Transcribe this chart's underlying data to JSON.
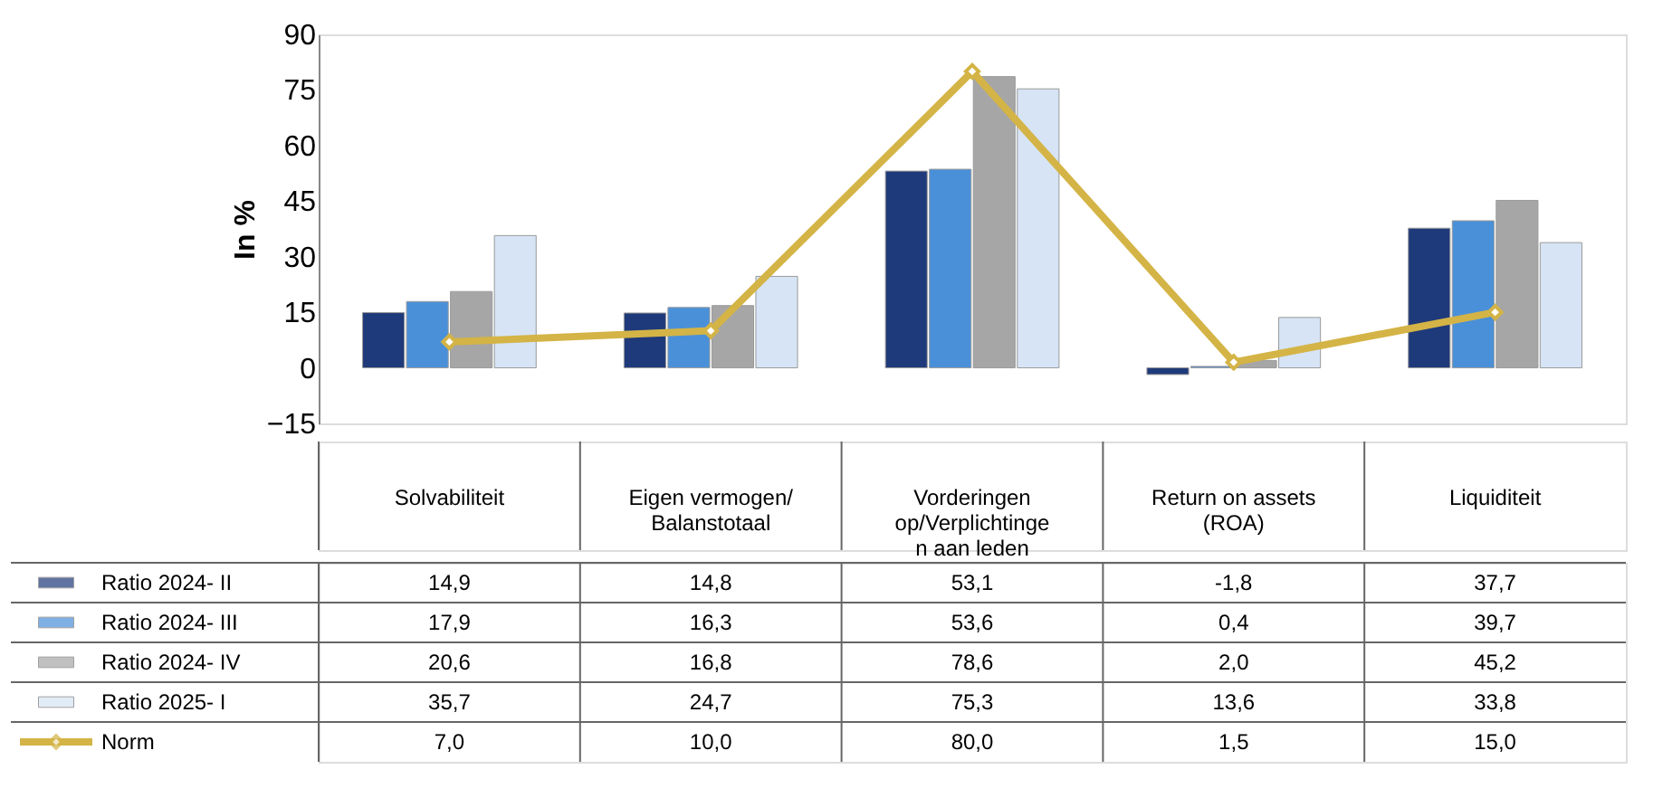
{
  "chart_data": {
    "type": "bar",
    "ylabel": "In %",
    "categories": [
      "Solvabiliteit",
      "Eigen vermogen/\nBalanstotaal",
      "Vorderingen\nop/Verplichtinge\nn aan leden",
      "Return on assets\n(ROA)",
      "Liquiditeit"
    ],
    "ylim": [
      -15,
      90
    ],
    "yticks": [
      -15,
      0,
      15,
      30,
      45,
      60,
      75,
      90
    ],
    "grid": false,
    "legend": "bottom",
    "series": [
      {
        "name": "Ratio 2024- II",
        "color": "#1f3a7a",
        "values": [
          14.9,
          14.8,
          53.1,
          -1.8,
          37.7
        ],
        "value_labels": [
          "14,9",
          "14,8",
          "53,1",
          "-1,8",
          "37,7"
        ]
      },
      {
        "name": "Ratio 2024- III",
        "color": "#4a90d9",
        "values": [
          17.9,
          16.3,
          53.6,
          0.4,
          39.7
        ],
        "value_labels": [
          "17,9",
          "16,3",
          "53,6",
          "0,4",
          "39,7"
        ]
      },
      {
        "name": "Ratio 2024- IV",
        "color": "#a6a6a6",
        "values": [
          20.6,
          16.8,
          78.6,
          2.0,
          45.2
        ],
        "value_labels": [
          "20,6",
          "16,8",
          "78,6",
          "2,0",
          "45,2"
        ]
      },
      {
        "name": "Ratio 2025- I",
        "color": "#d6e4f5",
        "values": [
          35.7,
          24.7,
          75.3,
          13.6,
          33.8
        ],
        "value_labels": [
          "35,7",
          "24,7",
          "75,3",
          "13,6",
          "33,8"
        ]
      },
      {
        "name": "Norm",
        "type": "line",
        "marker": "diamond",
        "color": "#d4b446",
        "values": [
          7.0,
          10.0,
          80.0,
          1.5,
          15.0
        ],
        "value_labels": [
          "7,0",
          "10,0",
          "80,0",
          "1,5",
          "15,0"
        ]
      }
    ]
  }
}
